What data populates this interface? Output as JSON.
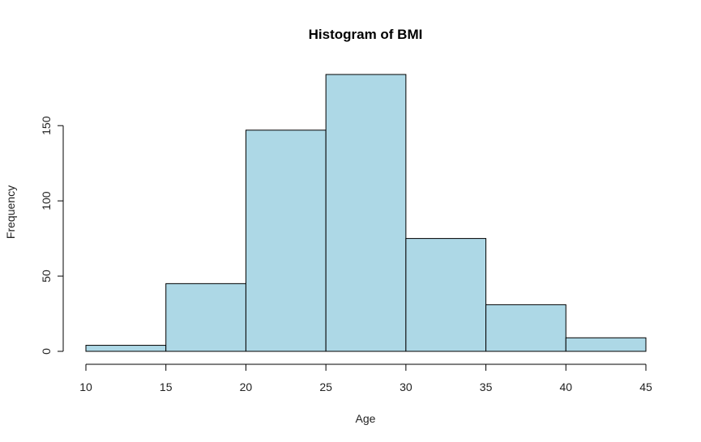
{
  "chart_data": {
    "type": "bar",
    "title": "Histogram of BMI",
    "xlabel": "Age",
    "ylabel": "Frequency",
    "bins": [
      {
        "from": 10,
        "to": 15,
        "count": 4
      },
      {
        "from": 15,
        "to": 20,
        "count": 45
      },
      {
        "from": 20,
        "to": 25,
        "count": 147
      },
      {
        "from": 25,
        "to": 30,
        "count": 184
      },
      {
        "from": 30,
        "to": 35,
        "count": 75
      },
      {
        "from": 35,
        "to": 40,
        "count": 31
      },
      {
        "from": 40,
        "to": 45,
        "count": 9
      }
    ],
    "x_ticks": [
      10,
      15,
      20,
      25,
      30,
      35,
      40,
      45
    ],
    "y_ticks": [
      0,
      50,
      100,
      150
    ],
    "xlim": [
      10,
      45
    ],
    "ylim": [
      0,
      184
    ],
    "grid": false,
    "bar_color": "#add8e6",
    "edge_color": "#000000"
  }
}
